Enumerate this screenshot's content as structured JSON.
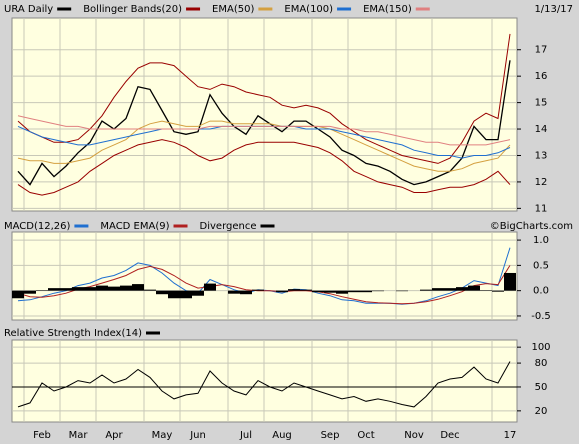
{
  "chart_data": [
    {
      "type": "line",
      "date": "1/13/17",
      "ylim": [
        10.9,
        18.2
      ],
      "yticks": [
        11,
        12,
        13,
        14,
        15,
        16,
        17
      ],
      "grid": true,
      "series": [
        {
          "name": "URA Daily",
          "color": "#000000",
          "values": [
            12.4,
            11.9,
            12.7,
            12.2,
            12.6,
            13.1,
            13.5,
            14.3,
            14.0,
            14.4,
            15.6,
            15.5,
            14.7,
            13.9,
            13.8,
            13.9,
            15.3,
            14.6,
            14.1,
            13.8,
            14.5,
            14.2,
            13.9,
            14.3,
            14.3,
            14.0,
            13.7,
            13.2,
            13.0,
            12.7,
            12.6,
            12.4,
            12.1,
            11.9,
            12.0,
            12.2,
            12.4,
            12.9,
            14.1,
            13.6,
            13.6,
            16.6
          ]
        },
        {
          "name": "Bollinger Bands(20)",
          "color": "#990000",
          "values": [
            14.3,
            13.9,
            13.7,
            13.5,
            13.5,
            13.6,
            14.0,
            14.5,
            15.2,
            15.8,
            16.3,
            16.5,
            16.5,
            16.4,
            16.0,
            15.6,
            15.5,
            15.7,
            15.6,
            15.4,
            15.3,
            15.2,
            14.9,
            14.8,
            14.9,
            14.8,
            14.6,
            14.2,
            13.9,
            13.6,
            13.4,
            13.2,
            13.0,
            12.9,
            12.8,
            12.7,
            12.9,
            13.5,
            14.3,
            14.6,
            14.4,
            17.6
          ]
        },
        {
          "color": "#990000",
          "values": [
            11.9,
            11.6,
            11.5,
            11.6,
            11.8,
            12.0,
            12.4,
            12.7,
            13.0,
            13.2,
            13.4,
            13.5,
            13.6,
            13.5,
            13.3,
            13.0,
            12.8,
            12.9,
            13.2,
            13.4,
            13.5,
            13.5,
            13.5,
            13.5,
            13.4,
            13.3,
            13.1,
            12.8,
            12.4,
            12.2,
            12.0,
            11.9,
            11.8,
            11.6,
            11.6,
            11.7,
            11.8,
            11.8,
            11.9,
            12.1,
            12.4,
            11.9
          ]
        },
        {
          "name": "EMA(50)",
          "color": "#d4a040",
          "values": [
            12.9,
            12.8,
            12.8,
            12.7,
            12.7,
            12.8,
            12.9,
            13.2,
            13.4,
            13.6,
            14.0,
            14.2,
            14.3,
            14.2,
            14.1,
            14.1,
            14.3,
            14.3,
            14.2,
            14.2,
            14.2,
            14.2,
            14.1,
            14.1,
            14.1,
            14.1,
            14.0,
            13.8,
            13.6,
            13.4,
            13.2,
            13.0,
            12.8,
            12.6,
            12.5,
            12.4,
            12.4,
            12.5,
            12.7,
            12.8,
            12.9,
            13.4
          ]
        },
        {
          "name": "EMA(100)",
          "color": "#1f6fd0",
          "values": [
            14.1,
            13.9,
            13.7,
            13.6,
            13.5,
            13.4,
            13.4,
            13.5,
            13.6,
            13.7,
            13.8,
            13.9,
            14.0,
            14.0,
            14.0,
            14.0,
            14.0,
            14.1,
            14.1,
            14.1,
            14.1,
            14.1,
            14.1,
            14.1,
            14.0,
            14.0,
            14.0,
            13.9,
            13.8,
            13.7,
            13.6,
            13.5,
            13.4,
            13.2,
            13.1,
            13.0,
            13.0,
            12.9,
            13.0,
            13.0,
            13.1,
            13.3
          ]
        },
        {
          "name": "EMA(150)",
          "color": "#e08080",
          "values": [
            14.5,
            14.4,
            14.3,
            14.2,
            14.1,
            14.1,
            14.0,
            14.0,
            14.0,
            14.0,
            14.0,
            14.0,
            14.0,
            14.0,
            14.0,
            14.0,
            14.1,
            14.1,
            14.1,
            14.1,
            14.1,
            14.1,
            14.1,
            14.1,
            14.1,
            14.1,
            14.1,
            14.0,
            14.0,
            13.9,
            13.9,
            13.8,
            13.7,
            13.6,
            13.5,
            13.5,
            13.4,
            13.4,
            13.4,
            13.4,
            13.5,
            13.6
          ]
        }
      ]
    },
    {
      "type": "line",
      "annotation": "©BigCharts.com",
      "ylim": [
        -0.58,
        1.16
      ],
      "yticks": [
        {
          "value": 1,
          "label": "1.0"
        },
        0.5,
        {
          "value": 0,
          "label": "0.0"
        },
        -0.5
      ],
      "grid": true,
      "series": [
        {
          "name": "MACD(12,26)",
          "color": "#1f6fd0",
          "values": [
            -0.2,
            -0.18,
            -0.12,
            -0.05,
            0.0,
            0.1,
            0.15,
            0.25,
            0.3,
            0.4,
            0.55,
            0.5,
            0.35,
            0.15,
            0.0,
            -0.05,
            0.22,
            0.12,
            0.02,
            -0.05,
            0.02,
            0.0,
            -0.05,
            0.03,
            0.02,
            -0.05,
            -0.1,
            -0.18,
            -0.2,
            -0.25,
            -0.25,
            -0.25,
            -0.27,
            -0.25,
            -0.2,
            -0.12,
            -0.05,
            0.05,
            0.2,
            0.15,
            0.1,
            0.85
          ]
        },
        {
          "name": "MACD EMA(9)",
          "color": "#b02020",
          "values": [
            -0.05,
            -0.12,
            -0.13,
            -0.1,
            -0.05,
            0.03,
            0.08,
            0.15,
            0.22,
            0.3,
            0.42,
            0.48,
            0.42,
            0.3,
            0.15,
            0.05,
            0.08,
            0.12,
            0.08,
            0.02,
            0.0,
            0.0,
            -0.02,
            0.0,
            0.0,
            -0.02,
            -0.06,
            -0.12,
            -0.17,
            -0.22,
            -0.24,
            -0.25,
            -0.26,
            -0.25,
            -0.22,
            -0.17,
            -0.1,
            -0.02,
            0.1,
            0.14,
            0.12,
            0.5
          ]
        },
        {
          "name": "Divergence",
          "color": "#000000",
          "type": "bar",
          "values": [
            -0.15,
            -0.06,
            0.01,
            0.05,
            0.05,
            0.07,
            0.07,
            0.1,
            0.08,
            0.1,
            0.13,
            0.02,
            -0.07,
            -0.15,
            -0.15,
            -0.1,
            0.14,
            0.0,
            -0.06,
            -0.07,
            0.02,
            0.0,
            -0.03,
            0.03,
            0.02,
            -0.03,
            -0.04,
            -0.06,
            -0.03,
            -0.03,
            -0.01,
            0.0,
            -0.01,
            0.0,
            0.02,
            0.05,
            0.05,
            0.07,
            0.1,
            0.01,
            -0.02,
            0.35
          ]
        }
      ]
    },
    {
      "type": "line",
      "ylim": [
        6,
        109
      ],
      "yticks": [
        100,
        80,
        50,
        20
      ],
      "grid": true,
      "hline": 50,
      "categories": [
        null,
        null,
        "Feb",
        null,
        null,
        "Mar",
        null,
        null,
        "Apr",
        null,
        null,
        null,
        "May",
        null,
        null,
        "Jun",
        null,
        null,
        null,
        "Jul",
        null,
        null,
        "Aug",
        null,
        null,
        null,
        "Sep",
        null,
        null,
        "Oct",
        null,
        null,
        null,
        "Nov",
        null,
        null,
        "Dec",
        null,
        null,
        null,
        null,
        "17"
      ],
      "series": [
        {
          "name": "Relative Strength Index(14)",
          "color": "#000000",
          "values": [
            25,
            30,
            55,
            45,
            50,
            58,
            55,
            65,
            55,
            60,
            72,
            62,
            45,
            35,
            40,
            42,
            70,
            55,
            45,
            40,
            58,
            50,
            45,
            55,
            50,
            45,
            40,
            35,
            38,
            32,
            35,
            32,
            28,
            25,
            38,
            55,
            60,
            62,
            75,
            60,
            55,
            82
          ]
        }
      ]
    }
  ]
}
